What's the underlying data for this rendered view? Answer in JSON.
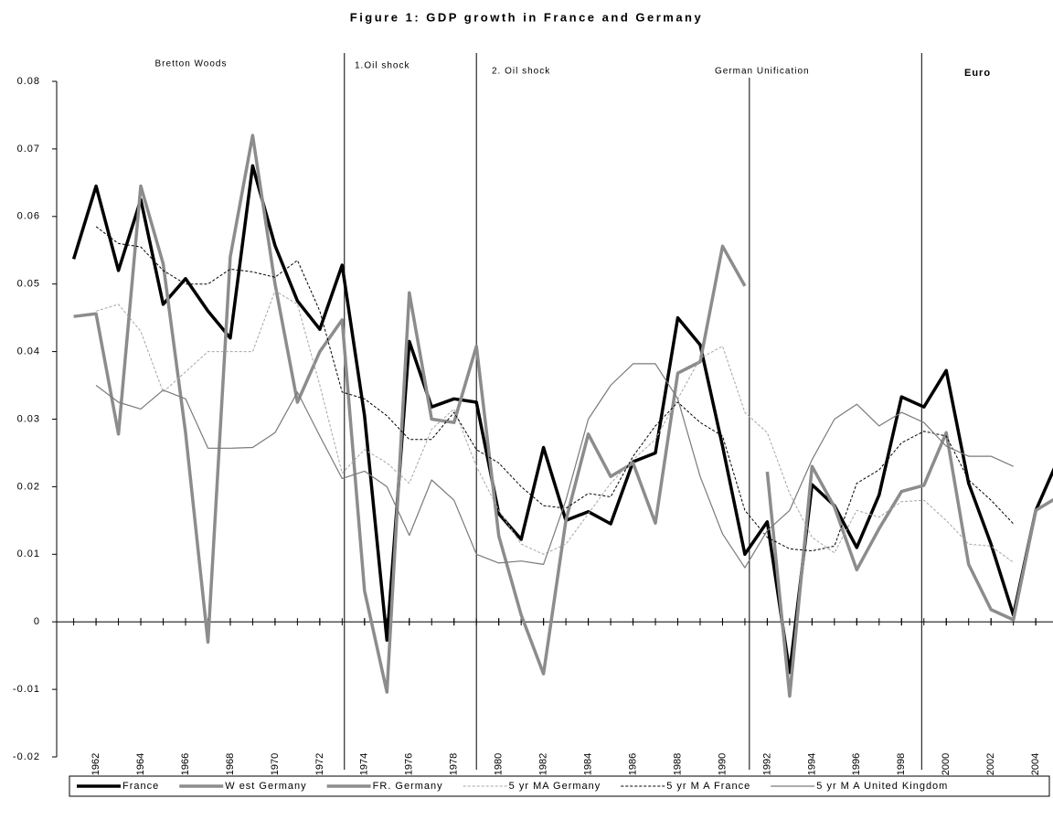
{
  "chart_data": {
    "type": "line",
    "title": "Figure 1: GDP growth in France and Germany",
    "x": [
      1961,
      1962,
      1963,
      1964,
      1965,
      1966,
      1967,
      1968,
      1969,
      1970,
      1971,
      1972,
      1973,
      1974,
      1975,
      1976,
      1977,
      1978,
      1979,
      1980,
      1981,
      1982,
      1983,
      1984,
      1985,
      1986,
      1987,
      1988,
      1989,
      1990,
      1991,
      1992,
      1993,
      1994,
      1995,
      1996,
      1997,
      1998,
      1999,
      2000,
      2001,
      2002,
      2003,
      2004,
      2005
    ],
    "xlim": [
      1960.24,
      2004.77
    ],
    "xticks": [
      1962,
      1964,
      1966,
      1968,
      1970,
      1972,
      1974,
      1976,
      1978,
      1980,
      1982,
      1984,
      1986,
      1988,
      1990,
      1992,
      1994,
      1996,
      1998,
      2000,
      2002,
      2004
    ],
    "ylim": [
      -0.02,
      0.08
    ],
    "yticks": [
      -0.02,
      -0.01,
      0,
      0.01,
      0.02,
      0.03,
      0.04,
      0.05,
      0.06,
      0.07,
      0.08
    ],
    "periods": [
      "Bretton Woods",
      "1.Oil shock",
      "2. Oil shock",
      "German Unification",
      "Euro"
    ],
    "event_lines": [
      1973.1,
      1979.0,
      1991.2,
      1998.9
    ],
    "series": [
      {
        "name": "France",
        "color": "#000000",
        "width": 3.5,
        "dash": "solid",
        "values": [
          0.0537,
          0.0645,
          0.052,
          0.0625,
          0.047,
          0.0508,
          0.046,
          0.042,
          0.0675,
          0.0557,
          0.0475,
          0.0433,
          0.0528,
          0.0305,
          -0.0027,
          0.0415,
          0.0318,
          0.033,
          0.0325,
          0.016,
          0.0122,
          0.0258,
          0.015,
          0.0163,
          0.0145,
          0.0237,
          0.025,
          0.045,
          0.041,
          0.026,
          0.01,
          0.0148,
          -0.0075,
          0.0203,
          0.0172,
          0.011,
          0.0188,
          0.0333,
          0.0318,
          0.0372,
          0.0205,
          0.0115,
          0.001,
          0.0165,
          0.024
        ]
      },
      {
        "name": "W est Germany",
        "color": "#8c8c8c",
        "width": 3.5,
        "dash": "solid",
        "values": [
          0.0452,
          0.0456,
          0.0278,
          0.0645,
          0.053,
          0.028,
          -0.003,
          0.054,
          0.072,
          0.05,
          0.0325,
          0.04,
          0.0447,
          0.0046,
          -0.0104,
          0.0487,
          0.03,
          0.0295,
          0.0408,
          0.0127,
          0.001,
          -0.0077,
          0.015,
          0.0278,
          0.0215,
          0.0235,
          0.0146,
          0.0368,
          0.0385,
          0.0556,
          0.0497,
          null,
          null,
          null,
          null,
          null,
          null,
          null,
          null,
          null,
          null,
          null,
          null,
          null,
          null
        ]
      },
      {
        "name": "FR. Germany",
        "color": "#8c8c8c",
        "width": 3.5,
        "dash": "solid",
        "values": [
          null,
          null,
          null,
          null,
          null,
          null,
          null,
          null,
          null,
          null,
          null,
          null,
          null,
          null,
          null,
          null,
          null,
          null,
          null,
          null,
          null,
          null,
          null,
          null,
          null,
          null,
          null,
          null,
          null,
          null,
          null,
          0.0222,
          -0.011,
          0.023,
          0.017,
          0.0077,
          0.0138,
          0.0193,
          0.0202,
          0.028,
          0.0085,
          0.0018,
          0.0003,
          0.0165,
          0.0185
        ]
      },
      {
        "name": "5 yr MA Germany",
        "color": "#a6a6a6",
        "width": 1,
        "dash": "dotted",
        "values": [
          null,
          0.046,
          0.047,
          0.043,
          0.034,
          0.037,
          0.04,
          0.04,
          0.04,
          0.049,
          0.047,
          0.035,
          0.022,
          0.0255,
          0.0235,
          0.0205,
          0.0285,
          0.0315,
          0.023,
          0.0165,
          0.0115,
          0.01,
          0.0115,
          0.016,
          0.0205,
          0.024,
          0.027,
          0.033,
          0.039,
          0.0408,
          0.031,
          0.028,
          0.019,
          0.0125,
          0.0102,
          0.0165,
          0.0155,
          0.0178,
          0.018,
          0.015,
          0.0115,
          0.0112,
          0.0088,
          null,
          null
        ]
      },
      {
        "name": "5 yr M A France",
        "color": "#000000",
        "width": 1,
        "dash": "dotted",
        "values": [
          null,
          0.0585,
          0.056,
          0.0555,
          0.052,
          0.05,
          0.05,
          0.0522,
          0.0518,
          0.051,
          0.0535,
          0.046,
          0.034,
          0.033,
          0.0305,
          0.027,
          0.027,
          0.031,
          0.0255,
          0.0235,
          0.02,
          0.0172,
          0.0168,
          0.019,
          0.0185,
          0.0245,
          0.029,
          0.0325,
          0.0295,
          0.0275,
          0.0165,
          0.0125,
          0.0108,
          0.0105,
          0.0112,
          0.0205,
          0.0225,
          0.0265,
          0.0282,
          0.0275,
          0.021,
          0.018,
          0.0145,
          null,
          null
        ]
      },
      {
        "name": "5 yr M A United Kingdom",
        "color": "#7a7a7a",
        "width": 1.2,
        "dash": "solid",
        "values": [
          null,
          0.035,
          0.0325,
          0.0315,
          0.0343,
          0.033,
          0.0257,
          0.0257,
          0.0258,
          0.028,
          0.034,
          0.0275,
          0.0212,
          0.0223,
          0.02,
          0.0128,
          0.021,
          0.018,
          0.01,
          0.0087,
          0.009,
          0.0085,
          0.018,
          0.03,
          0.035,
          0.0382,
          0.0382,
          0.033,
          0.0215,
          0.013,
          0.008,
          0.0135,
          0.0165,
          0.024,
          0.03,
          0.0322,
          0.029,
          0.031,
          0.0295,
          0.026,
          0.0245,
          0.0245,
          0.023,
          null,
          null
        ]
      }
    ]
  }
}
